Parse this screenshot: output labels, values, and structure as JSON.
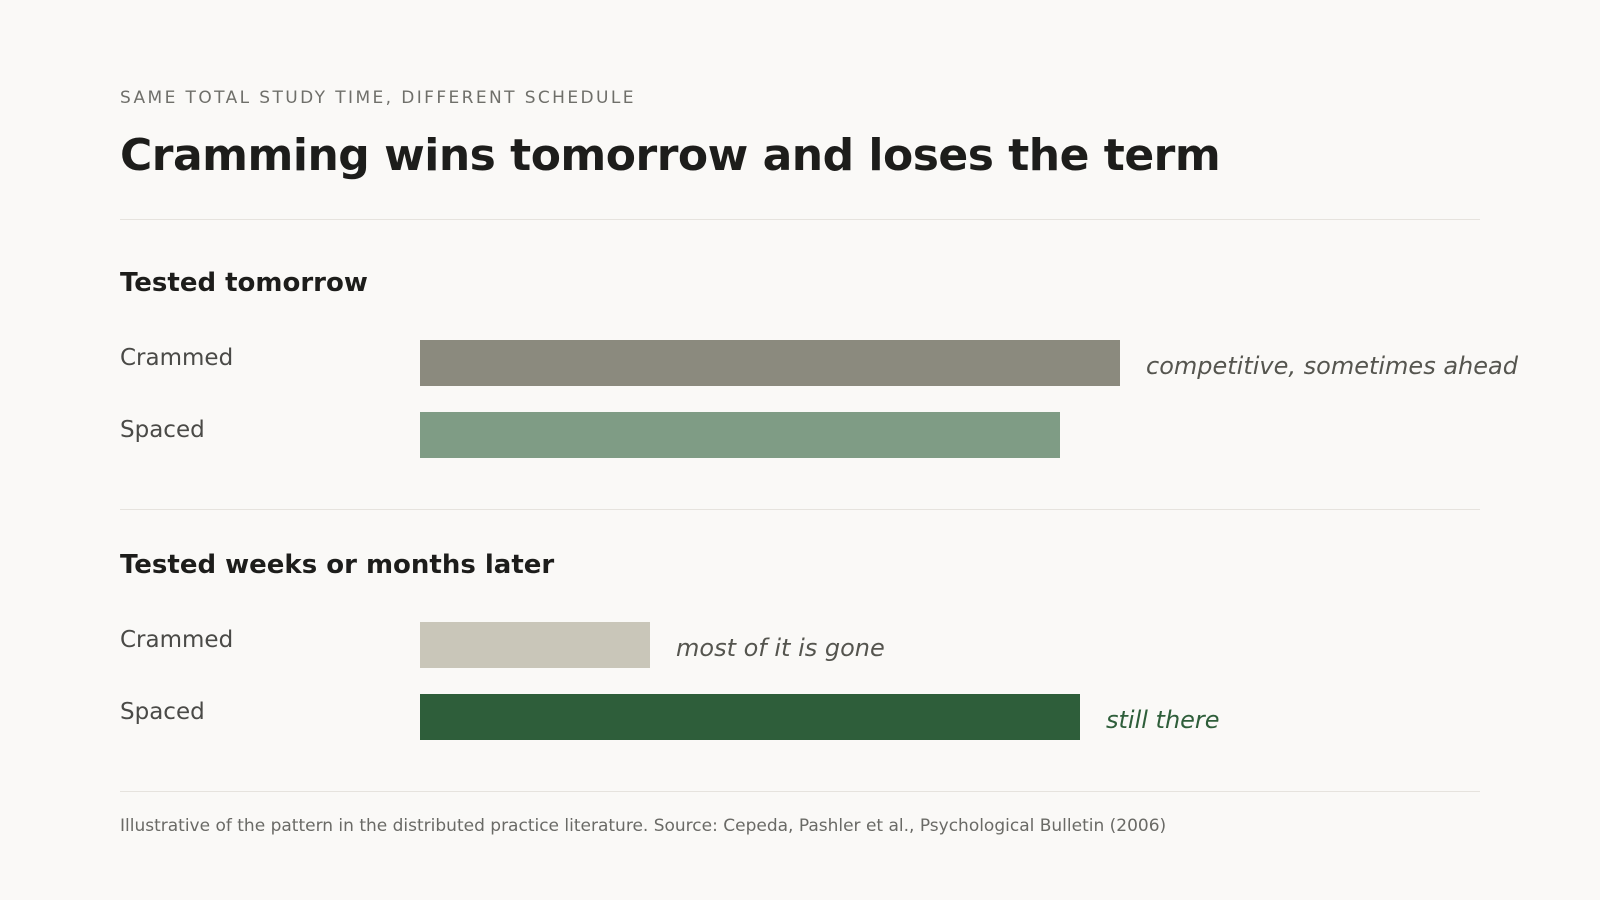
{
  "header": {
    "eyebrow": "SAME TOTAL STUDY TIME, DIFFERENT SCHEDULE",
    "title": "Cramming wins tomorrow and loses the term"
  },
  "chart_data": {
    "type": "bar",
    "orientation": "horizontal",
    "scale_max": 1.0,
    "panels": [
      {
        "heading": "Tested tomorrow",
        "bars": [
          {
            "label": "Crammed",
            "value": 0.7,
            "color": "#8b8a7e",
            "note": "competitive, sometimes ahead",
            "note_color": "#55554f"
          },
          {
            "label": "Spaced",
            "value": 0.64,
            "color": "#7f9c85",
            "note": "",
            "note_color": "#55554f"
          }
        ]
      },
      {
        "heading": "Tested weeks or months later",
        "bars": [
          {
            "label": "Crammed",
            "value": 0.23,
            "color": "#c9c6b9",
            "note": "most of it is gone",
            "note_color": "#55554f"
          },
          {
            "label": "Spaced",
            "value": 0.66,
            "color": "#2e5e3a",
            "note": "still there",
            "note_color": "#2e5e3a"
          }
        ]
      }
    ]
  },
  "footer": {
    "source": "Illustrative of the pattern in the distributed practice literature. Source: Cepeda, Pashler et al., Psychological Bulletin (2006)"
  }
}
